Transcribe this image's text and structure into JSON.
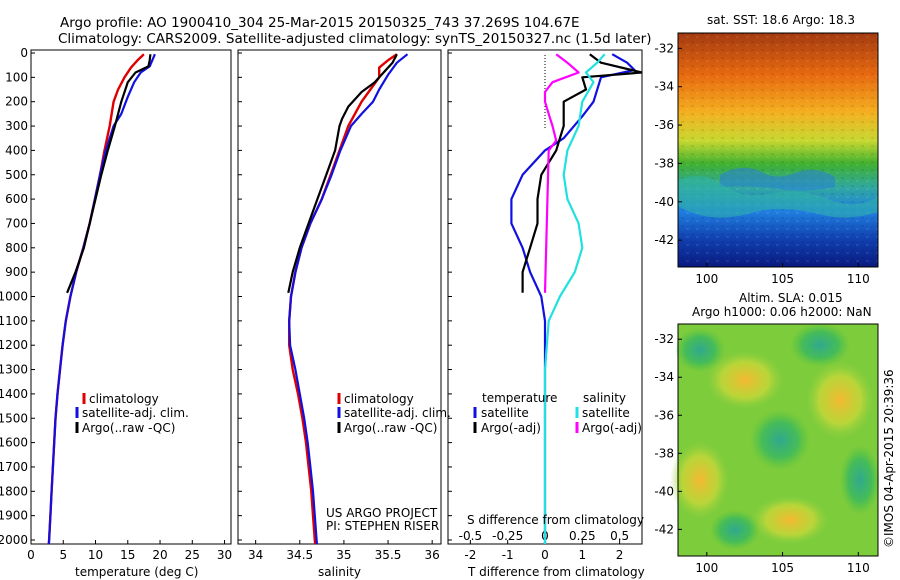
{
  "header": {
    "line1": "Argo profile: AO 1900410_304 25-Mar-2015 20150325_743 37.269S 104.67E",
    "line2": "Climatology: CARS2009. Satellite-adjusted climatology: synTS_20150327.nc (1.5d later)"
  },
  "colors": {
    "climatology": "#e00000",
    "satellite": "#1010e0",
    "argo": "#000000",
    "argo_salinity": "#ff00ff",
    "satellite_salinity": "#20e0e0"
  },
  "chart_data": [
    {
      "type": "line",
      "xlabel": "temperature (deg C)",
      "xlim": [
        0,
        31
      ],
      "xticks": [
        0,
        5,
        10,
        15,
        20,
        25,
        30
      ],
      "ylim": [
        2050,
        0
      ],
      "yticks": [
        0,
        100,
        200,
        300,
        400,
        500,
        600,
        700,
        800,
        900,
        1000,
        1100,
        1200,
        1300,
        1400,
        1500,
        1600,
        1700,
        1800,
        1900,
        2000
      ],
      "legend": {
        "placement": "bottom-left",
        "entries": [
          "climatology",
          "satellite-adj. clim.",
          "Argo(..raw -QC)"
        ]
      },
      "series": [
        {
          "name": "climatology",
          "color": "#e00000",
          "points": [
            [
              17.5,
              5
            ],
            [
              16.5,
              30
            ],
            [
              15.5,
              60
            ],
            [
              14.5,
              100
            ],
            [
              13.5,
              150
            ],
            [
              12.8,
              200
            ],
            [
              12.2,
              300
            ],
            [
              11.4,
              400
            ],
            [
              10.7,
              500
            ],
            [
              9.9,
              600
            ],
            [
              9.1,
              700
            ],
            [
              8.1,
              800
            ],
            [
              7.0,
              900
            ],
            [
              6.1,
              1000
            ],
            [
              5.4,
              1100
            ],
            [
              4.9,
              1200
            ],
            [
              4.5,
              1300
            ],
            [
              4.1,
              1400
            ],
            [
              3.8,
              1500
            ],
            [
              3.6,
              1600
            ],
            [
              3.4,
              1700
            ],
            [
              3.2,
              1800
            ],
            [
              3.0,
              1900
            ],
            [
              2.8,
              2000
            ],
            [
              2.7,
              2040
            ]
          ]
        },
        {
          "name": "satellite-adj. clim.",
          "color": "#1010e0",
          "points": [
            [
              19.2,
              5
            ],
            [
              18.8,
              30
            ],
            [
              18.4,
              55
            ],
            [
              17.0,
              80
            ],
            [
              16.0,
              120
            ],
            [
              15.0,
              180
            ],
            [
              14.0,
              250
            ],
            [
              12.8,
              300
            ],
            [
              11.6,
              400
            ],
            [
              10.7,
              500
            ],
            [
              9.9,
              600
            ],
            [
              9.1,
              700
            ],
            [
              8.1,
              800
            ],
            [
              7.0,
              900
            ],
            [
              6.1,
              1000
            ],
            [
              5.4,
              1100
            ],
            [
              4.9,
              1200
            ],
            [
              4.5,
              1300
            ],
            [
              4.1,
              1400
            ],
            [
              3.8,
              1500
            ],
            [
              3.6,
              1600
            ],
            [
              3.4,
              1700
            ],
            [
              3.2,
              1800
            ],
            [
              3.0,
              1900
            ],
            [
              2.8,
              2000
            ],
            [
              2.7,
              2040
            ]
          ]
        },
        {
          "name": "Argo(..raw -QC)",
          "color": "#000000",
          "points": [
            [
              18.5,
              5
            ],
            [
              18.4,
              30
            ],
            [
              18.2,
              55
            ],
            [
              16.2,
              80
            ],
            [
              15.0,
              120
            ],
            [
              14.0,
              200
            ],
            [
              13.0,
              300
            ],
            [
              11.9,
              400
            ],
            [
              10.9,
              500
            ],
            [
              10.0,
              600
            ],
            [
              9.1,
              700
            ],
            [
              8.2,
              800
            ],
            [
              6.9,
              900
            ],
            [
              5.6,
              985
            ]
          ]
        }
      ]
    },
    {
      "type": "line",
      "xlabel": "salinity",
      "xlim": [
        33.8,
        36.1
      ],
      "xticks": [
        34,
        34.5,
        35,
        35.5,
        36
      ],
      "ylim": [
        2050,
        0
      ],
      "legend": {
        "placement": "bottom-right",
        "entries": [
          "climatology",
          "satellite-adj. clim.",
          "Argo(..raw -QC)"
        ]
      },
      "annotations": [
        "US ARGO PROJECT",
        "PI: STEPHEN RISER"
      ],
      "series": [
        {
          "name": "climatology",
          "color": "#e00000",
          "points": [
            [
              35.6,
              5
            ],
            [
              35.5,
              30
            ],
            [
              35.4,
              60
            ],
            [
              35.4,
              100
            ],
            [
              35.3,
              150
            ],
            [
              35.2,
              200
            ],
            [
              35.05,
              300
            ],
            [
              34.95,
              400
            ],
            [
              34.85,
              500
            ],
            [
              34.75,
              600
            ],
            [
              34.62,
              700
            ],
            [
              34.52,
              800
            ],
            [
              34.45,
              900
            ],
            [
              34.4,
              1000
            ],
            [
              34.38,
              1100
            ],
            [
              34.38,
              1200
            ],
            [
              34.42,
              1300
            ],
            [
              34.48,
              1400
            ],
            [
              34.53,
              1500
            ],
            [
              34.57,
              1600
            ],
            [
              34.6,
              1700
            ],
            [
              34.63,
              1800
            ],
            [
              34.65,
              1900
            ],
            [
              34.67,
              2000
            ],
            [
              34.68,
              2040
            ]
          ]
        },
        {
          "name": "satellite-adj. clim.",
          "color": "#1010e0",
          "points": [
            [
              35.72,
              5
            ],
            [
              35.6,
              40
            ],
            [
              35.5,
              90
            ],
            [
              35.4,
              150
            ],
            [
              35.33,
              200
            ],
            [
              35.2,
              250
            ],
            [
              35.08,
              300
            ],
            [
              34.96,
              400
            ],
            [
              34.86,
              500
            ],
            [
              34.75,
              600
            ],
            [
              34.62,
              700
            ],
            [
              34.52,
              800
            ],
            [
              34.45,
              900
            ],
            [
              34.4,
              1000
            ],
            [
              34.38,
              1100
            ],
            [
              34.39,
              1200
            ],
            [
              34.45,
              1300
            ],
            [
              34.5,
              1400
            ],
            [
              34.55,
              1500
            ],
            [
              34.59,
              1600
            ],
            [
              34.62,
              1700
            ],
            [
              34.65,
              1800
            ],
            [
              34.67,
              1900
            ],
            [
              34.69,
              2000
            ],
            [
              34.7,
              2040
            ]
          ]
        },
        {
          "name": "Argo(..raw -QC)",
          "color": "#000000",
          "points": [
            [
              35.6,
              5
            ],
            [
              35.55,
              40
            ],
            [
              35.45,
              80
            ],
            [
              35.35,
              120
            ],
            [
              35.2,
              160
            ],
            [
              35.05,
              220
            ],
            [
              34.98,
              270
            ],
            [
              34.95,
              300
            ],
            [
              34.9,
              400
            ],
            [
              34.8,
              500
            ],
            [
              34.7,
              600
            ],
            [
              34.6,
              700
            ],
            [
              34.5,
              800
            ],
            [
              34.42,
              900
            ],
            [
              34.37,
              985
            ]
          ]
        }
      ]
    },
    {
      "type": "line",
      "xlabel": "T difference from climatology",
      "xlim": [
        -2.6,
        2.6
      ],
      "xticks": [
        -2,
        -1,
        0,
        1,
        2
      ],
      "ylim": [
        2050,
        0
      ],
      "top_axis": {
        "label": "S difference from climatology",
        "ticks": [
          "-0.5",
          "-0.25",
          "0",
          "0.25",
          "0.5"
        ]
      },
      "legend": {
        "placement": "bottom",
        "headers": [
          "temperature",
          "salinity"
        ],
        "entries": [
          "satellite",
          "Argo(-adj)",
          "satellite",
          "Argo(-adj)"
        ]
      },
      "series": [
        {
          "name": "satellite",
          "color": "#1010e0",
          "points": [
            [
              1.8,
              5
            ],
            [
              2.2,
              40
            ],
            [
              2.4,
              70
            ],
            [
              1.5,
              100
            ],
            [
              1.3,
              200
            ],
            [
              1.0,
              260
            ],
            [
              0.5,
              350
            ],
            [
              0.0,
              400
            ],
            [
              -0.6,
              500
            ],
            [
              -0.9,
              600
            ],
            [
              -0.9,
              700
            ],
            [
              -0.6,
              800
            ],
            [
              -0.4,
              900
            ],
            [
              -0.1,
              1000
            ],
            [
              0.0,
              1100
            ],
            [
              0.0,
              1500
            ],
            [
              0.0,
              2040
            ]
          ]
        },
        {
          "name": "Argo(-adj)",
          "color": "#000000",
          "points": [
            [
              1.2,
              5
            ],
            [
              1.5,
              40
            ],
            [
              2.6,
              80
            ],
            [
              1.0,
              100
            ],
            [
              1.1,
              150
            ],
            [
              0.5,
              200
            ],
            [
              0.5,
              300
            ],
            [
              0.4,
              350
            ],
            [
              0.3,
              400
            ],
            [
              -0.1,
              500
            ],
            [
              -0.2,
              600
            ],
            [
              -0.2,
              700
            ],
            [
              -0.4,
              800
            ],
            [
              -0.6,
              900
            ],
            [
              -0.6,
              985
            ]
          ]
        },
        {
          "name": "satellite",
          "color": "#20e0e0",
          "points": [
            [
              1.6,
              5
            ],
            [
              1.4,
              40
            ],
            [
              1.1,
              80
            ],
            [
              1.3,
              120
            ],
            [
              1.0,
              200
            ],
            [
              0.9,
              300
            ],
            [
              0.6,
              400
            ],
            [
              0.5,
              500
            ],
            [
              0.6,
              600
            ],
            [
              0.9,
              700
            ],
            [
              1.0,
              800
            ],
            [
              0.8,
              900
            ],
            [
              0.4,
              1000
            ],
            [
              0.1,
              1100
            ],
            [
              0.0,
              1300
            ],
            [
              0.0,
              1500
            ],
            [
              0.0,
              2040
            ]
          ]
        },
        {
          "name": "Argo(-adj)",
          "color": "#ff00ff",
          "points": [
            [
              0.3,
              5
            ],
            [
              0.6,
              40
            ],
            [
              0.9,
              80
            ],
            [
              0.2,
              120
            ],
            [
              0.0,
              160
            ],
            [
              0.0,
              200
            ],
            [
              0.1,
              250
            ],
            [
              0.2,
              300
            ],
            [
              0.3,
              360
            ],
            [
              0.1,
              400
            ],
            [
              0.0,
              985
            ]
          ]
        }
      ]
    },
    {
      "type": "heatmap",
      "title": "sat. SST: 18.6 Argo: 18.3",
      "xticks": [
        100,
        105,
        110
      ],
      "yticks": [
        -32,
        -34,
        -36,
        -38,
        -40,
        -42
      ],
      "xlim": [
        98.1,
        111.3
      ],
      "ylim": [
        -43.4,
        -31.2
      ],
      "colormap": "jet"
    },
    {
      "type": "heatmap",
      "title": "Altim. SLA: 0.015",
      "subtitle": "Argo h1000: 0.06 h2000: NaN",
      "xticks": [
        100,
        105,
        110
      ],
      "yticks": [
        -32,
        -34,
        -36,
        -38,
        -40,
        -42
      ],
      "xlim": [
        98.1,
        111.3
      ],
      "ylim": [
        -43.4,
        -31.2
      ],
      "colormap": "jet"
    }
  ],
  "footer": {
    "credit": "©IMOS 04-Apr-2015 20:39:36"
  }
}
